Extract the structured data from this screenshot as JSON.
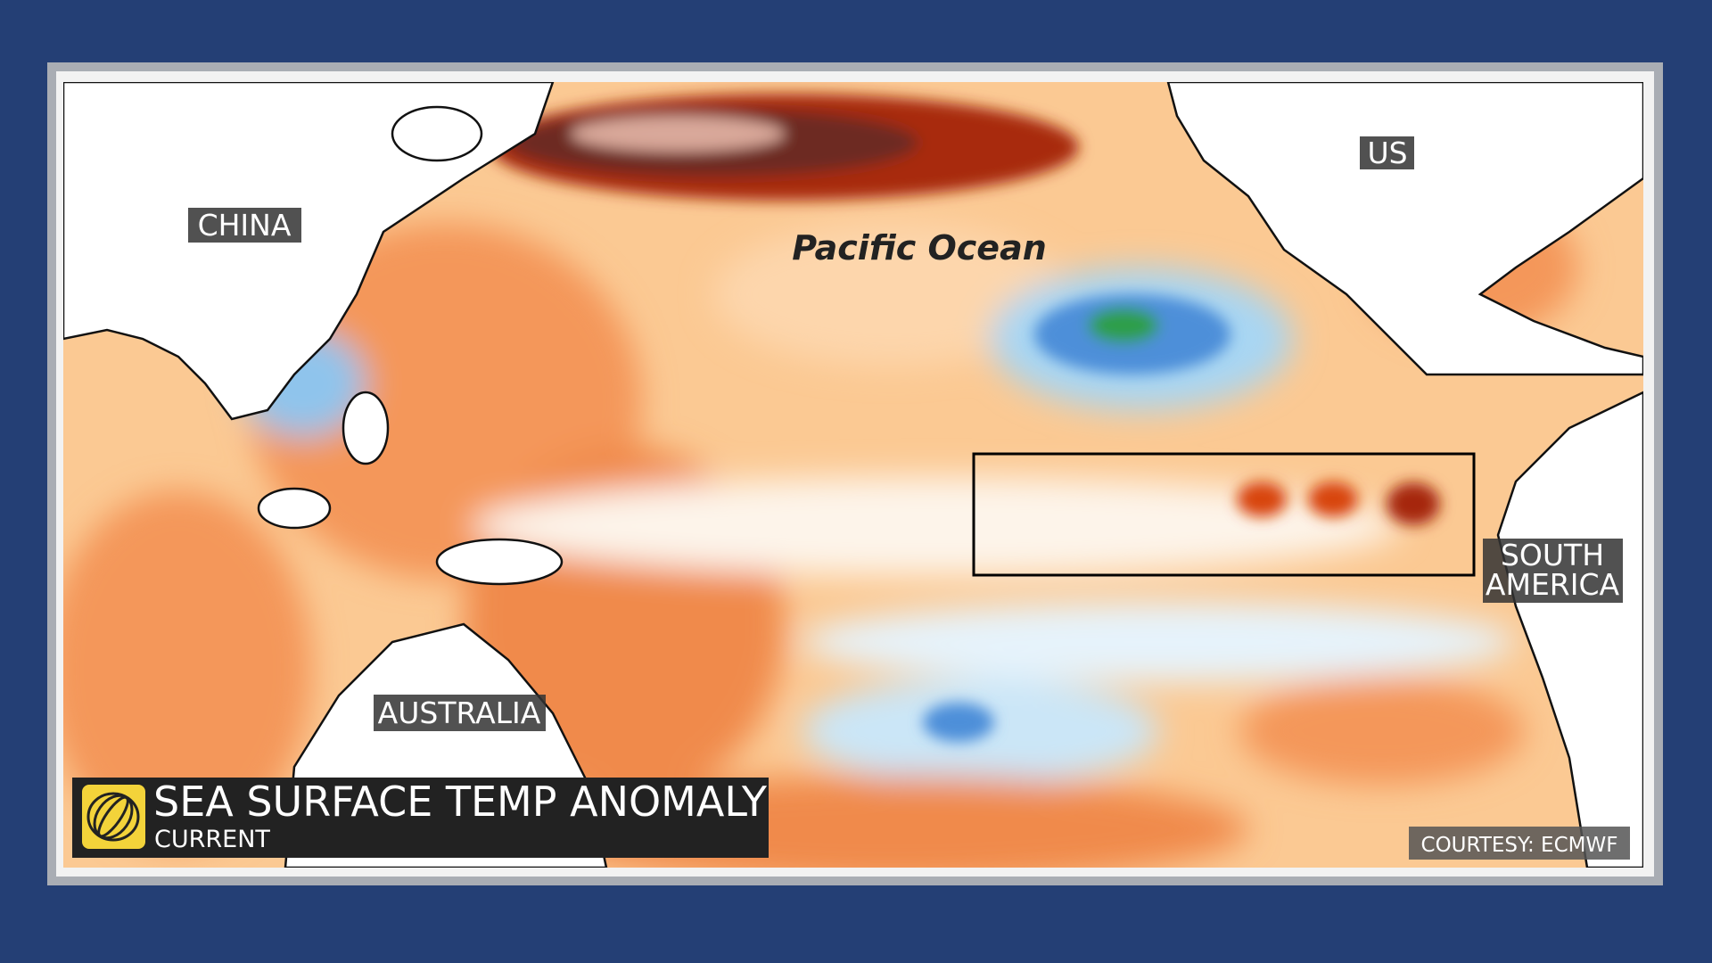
{
  "labels": {
    "china": "CHINA",
    "us": "US",
    "ocean": "Pacific Ocean",
    "south_america": [
      "SOUTH",
      "AMERICA"
    ],
    "australia": "AUSTRALIA"
  },
  "banner": {
    "title": "SEA SURFACE TEMP ANOMALY",
    "subtitle": "CURRENT"
  },
  "credit": "COURTESY: ECMWF"
}
